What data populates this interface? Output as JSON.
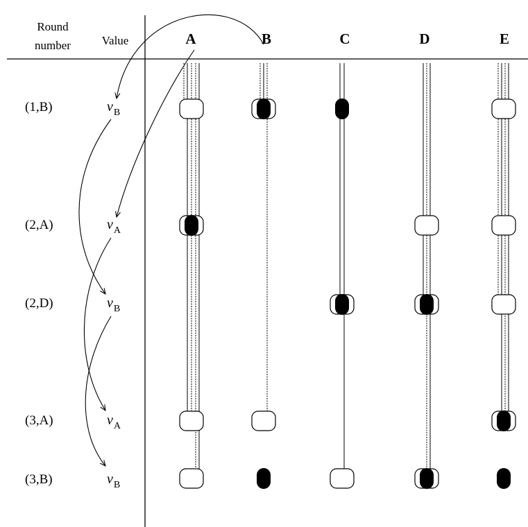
{
  "header": {
    "round_label_line1": "Round",
    "round_label_line2": "number",
    "value_label": "Value"
  },
  "columns": [
    "A",
    "B",
    "C",
    "D",
    "E"
  ],
  "rows": [
    {
      "round": "(1,B)",
      "value_symbol": "v",
      "value_sub": "B"
    },
    {
      "round": "(2,A)",
      "value_symbol": "v",
      "value_sub": "A"
    },
    {
      "round": "(2,D)",
      "value_symbol": "v",
      "value_sub": "B"
    },
    {
      "round": "(3,A)",
      "value_symbol": "v",
      "value_sub": "A"
    },
    {
      "round": "(3,B)",
      "value_symbol": "v",
      "value_sub": "B"
    }
  ],
  "cells": [
    [
      "open",
      "open+filled",
      "filled",
      "",
      "open"
    ],
    [
      "open+filled",
      "",
      "",
      "open",
      "open"
    ],
    [
      "",
      "",
      "open+filled",
      "open+filled",
      "open"
    ],
    [
      "open",
      "open",
      "",
      "",
      "open+filled"
    ],
    [
      "open",
      "filled",
      "open",
      "open+filled",
      "filled"
    ]
  ],
  "colors": {
    "ink": "#000000",
    "background": "#ffffff"
  }
}
